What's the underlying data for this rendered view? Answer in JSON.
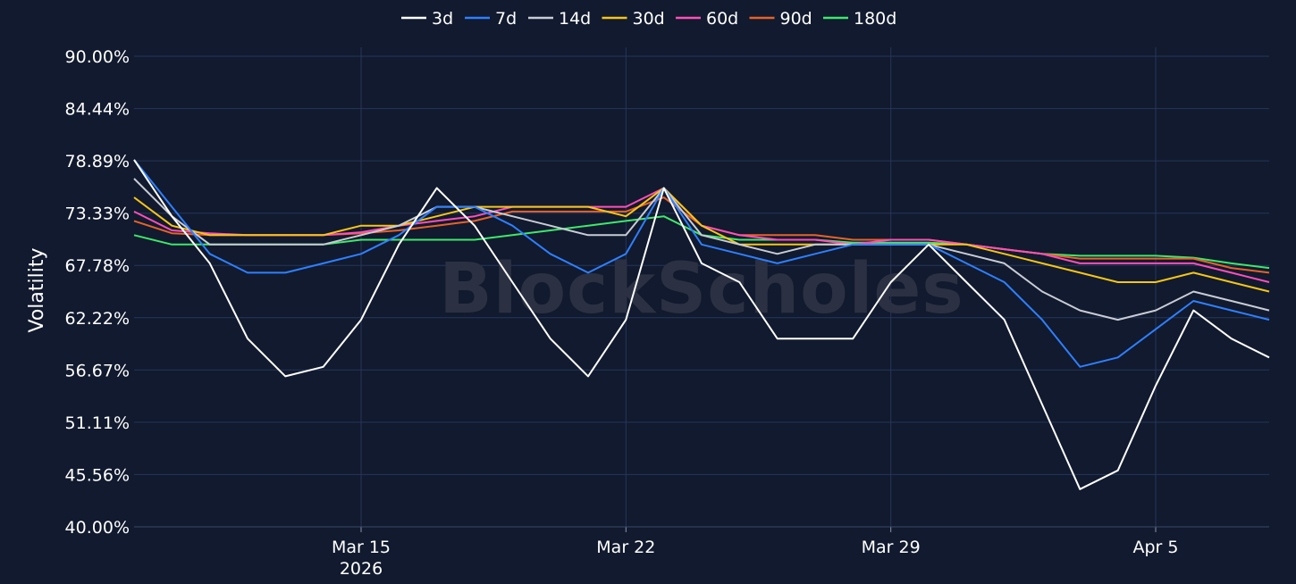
{
  "chart_data": {
    "type": "line",
    "title": "",
    "ylabel": "Volatility",
    "xlabel": "",
    "watermark": "BlockScholes",
    "legend_position": "top-center",
    "grid": true,
    "ylim": [
      40,
      90
    ],
    "y_ticks": [
      {
        "value": 90.0,
        "label": "90.00%"
      },
      {
        "value": 84.44,
        "label": "84.44%"
      },
      {
        "value": 78.89,
        "label": "78.89%"
      },
      {
        "value": 73.33,
        "label": "73.33%"
      },
      {
        "value": 67.78,
        "label": "67.78%"
      },
      {
        "value": 62.22,
        "label": "62.22%"
      },
      {
        "value": 56.67,
        "label": "56.67%"
      },
      {
        "value": 51.11,
        "label": "51.11%"
      },
      {
        "value": 45.56,
        "label": "45.56%"
      },
      {
        "value": 40.0,
        "label": "40.00%"
      }
    ],
    "xlim": [
      "2026-03-09",
      "2026-04-08"
    ],
    "x_ticks": [
      {
        "date": "2026-03-15",
        "label": "Mar 15",
        "sublabel": "2026"
      },
      {
        "date": "2026-03-22",
        "label": "Mar 22",
        "sublabel": ""
      },
      {
        "date": "2026-03-29",
        "label": "Mar 29",
        "sublabel": ""
      },
      {
        "date": "2026-04-05",
        "label": "Apr 5",
        "sublabel": ""
      }
    ],
    "x": [
      "2026-03-09",
      "2026-03-10",
      "2026-03-11",
      "2026-03-12",
      "2026-03-13",
      "2026-03-14",
      "2026-03-15",
      "2026-03-16",
      "2026-03-17",
      "2026-03-18",
      "2026-03-19",
      "2026-03-20",
      "2026-03-21",
      "2026-03-22",
      "2026-03-23",
      "2026-03-24",
      "2026-03-25",
      "2026-03-26",
      "2026-03-27",
      "2026-03-28",
      "2026-03-29",
      "2026-03-30",
      "2026-03-31",
      "2026-04-01",
      "2026-04-02",
      "2026-04-03",
      "2026-04-04",
      "2026-04-05",
      "2026-04-06",
      "2026-04-07",
      "2026-04-08"
    ],
    "series": [
      {
        "name": "3d",
        "color": "#ffffff",
        "values": [
          79,
          73,
          68,
          60,
          56,
          57,
          62,
          70,
          76,
          72,
          66,
          60,
          56,
          62,
          76,
          68,
          66,
          60,
          60,
          60,
          66,
          70,
          66,
          62,
          53,
          44,
          46,
          55,
          63,
          60,
          58
        ]
      },
      {
        "name": "7d",
        "color": "#2f7fff",
        "values": [
          79,
          74,
          69,
          67,
          67,
          68,
          69,
          71,
          74,
          74,
          72,
          69,
          67,
          69,
          76,
          70,
          69,
          68,
          69,
          70,
          70,
          70,
          68,
          66,
          62,
          57,
          58,
          61,
          64,
          63,
          62
        ]
      },
      {
        "name": "14d",
        "color": "#c8ccd4",
        "values": [
          77,
          73,
          70,
          70,
          70,
          70,
          71,
          72,
          74,
          74,
          73,
          72,
          71,
          71,
          76,
          71,
          70,
          69,
          70,
          70,
          70,
          70,
          69,
          68,
          65,
          63,
          62,
          63,
          65,
          64,
          63
        ]
      },
      {
        "name": "30d",
        "color": "#f5c518",
        "values": [
          75,
          72,
          71,
          71,
          71,
          71,
          72,
          72,
          73,
          74,
          74,
          74,
          74,
          73,
          76,
          72,
          70,
          70,
          70,
          70,
          70,
          70,
          70,
          69,
          68,
          67,
          66,
          66,
          67,
          66,
          65
        ]
      },
      {
        "name": "60d",
        "color": "#ff4fb8",
        "values": [
          73.5,
          71.5,
          71.2,
          71,
          71,
          71,
          71.3,
          72,
          72.5,
          73,
          74,
          74,
          74,
          74,
          76,
          72,
          71,
          70.5,
          70.5,
          70,
          70.5,
          70.5,
          70,
          69.5,
          69,
          68,
          68,
          68,
          68,
          67,
          66
        ]
      },
      {
        "name": "90d",
        "color": "#e8622a",
        "values": [
          72.5,
          71.2,
          71,
          71,
          71,
          71,
          71.2,
          71.5,
          72,
          72.5,
          73.5,
          73.5,
          73.5,
          73.5,
          75,
          72,
          71,
          71,
          71,
          70.5,
          70.5,
          70.5,
          70,
          69.5,
          69,
          68.5,
          68.5,
          68.5,
          68.5,
          67.5,
          67
        ]
      },
      {
        "name": "180d",
        "color": "#3ee86a",
        "values": [
          71,
          70,
          70,
          70,
          70,
          70,
          70.5,
          70.5,
          70.5,
          70.5,
          71,
          71.5,
          72,
          72.5,
          73,
          71,
          70.5,
          70.5,
          70.5,
          70.2,
          70.2,
          70.2,
          70,
          69.5,
          69,
          68.8,
          68.8,
          68.8,
          68.6,
          68,
          67.5
        ]
      }
    ]
  }
}
